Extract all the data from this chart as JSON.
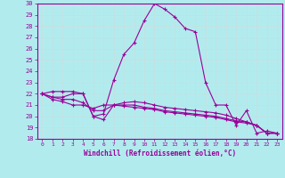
{
  "xlabel": "Windchill (Refroidissement éolien,°C)",
  "background_color": "#b2ebee",
  "line_color": "#990099",
  "grid_color": "#c8dfe0",
  "xlim": [
    -0.5,
    23.5
  ],
  "ylim": [
    18,
    30
  ],
  "yticks": [
    18,
    19,
    20,
    21,
    22,
    23,
    24,
    25,
    26,
    27,
    28,
    29,
    30
  ],
  "xticks": [
    0,
    1,
    2,
    3,
    4,
    5,
    6,
    7,
    8,
    9,
    10,
    11,
    12,
    13,
    14,
    15,
    16,
    17,
    18,
    19,
    20,
    21,
    22,
    23
  ],
  "series1": {
    "x": [
      0,
      1,
      2,
      3,
      4,
      5,
      6,
      7,
      8,
      9,
      10,
      11,
      12,
      13,
      14,
      15,
      16,
      17,
      18,
      19,
      20,
      21,
      22,
      23
    ],
    "y": [
      22.0,
      22.2,
      22.2,
      22.2,
      22.0,
      20.0,
      20.2,
      23.2,
      25.5,
      26.5,
      28.5,
      30.0,
      29.5,
      28.8,
      27.8,
      27.5,
      23.0,
      21.0,
      21.0,
      19.2,
      20.5,
      18.5,
      18.7,
      18.5
    ]
  },
  "series2": {
    "x": [
      0,
      1,
      2,
      3,
      4,
      5,
      6,
      7,
      8,
      9,
      10,
      11,
      12,
      13,
      14,
      15,
      16,
      17,
      18,
      19,
      20,
      21,
      22,
      23
    ],
    "y": [
      22.0,
      21.7,
      21.7,
      22.0,
      22.0,
      20.0,
      19.7,
      21.0,
      21.2,
      21.3,
      21.2,
      21.0,
      20.8,
      20.7,
      20.6,
      20.5,
      20.4,
      20.3,
      20.1,
      19.8,
      19.5,
      19.2,
      18.5,
      18.5
    ]
  },
  "series3": {
    "x": [
      0,
      1,
      2,
      3,
      4,
      5,
      6,
      7,
      8,
      9,
      10,
      11,
      12,
      13,
      14,
      15,
      16,
      17,
      18,
      19,
      20,
      21,
      22,
      23
    ],
    "y": [
      22.0,
      21.7,
      21.5,
      21.5,
      21.2,
      20.5,
      20.5,
      21.0,
      21.0,
      21.0,
      20.8,
      20.7,
      20.5,
      20.4,
      20.3,
      20.2,
      20.1,
      20.0,
      19.8,
      19.6,
      19.5,
      19.2,
      18.5,
      18.5
    ]
  },
  "series4": {
    "x": [
      0,
      1,
      2,
      3,
      4,
      5,
      6,
      7,
      8,
      9,
      10,
      11,
      12,
      13,
      14,
      15,
      16,
      17,
      18,
      19,
      20,
      21,
      22,
      23
    ],
    "y": [
      22.0,
      21.5,
      21.3,
      21.0,
      21.0,
      20.7,
      21.0,
      21.0,
      20.9,
      20.8,
      20.7,
      20.6,
      20.4,
      20.3,
      20.2,
      20.1,
      20.0,
      19.9,
      19.7,
      19.5,
      19.4,
      19.2,
      18.5,
      18.5
    ]
  }
}
